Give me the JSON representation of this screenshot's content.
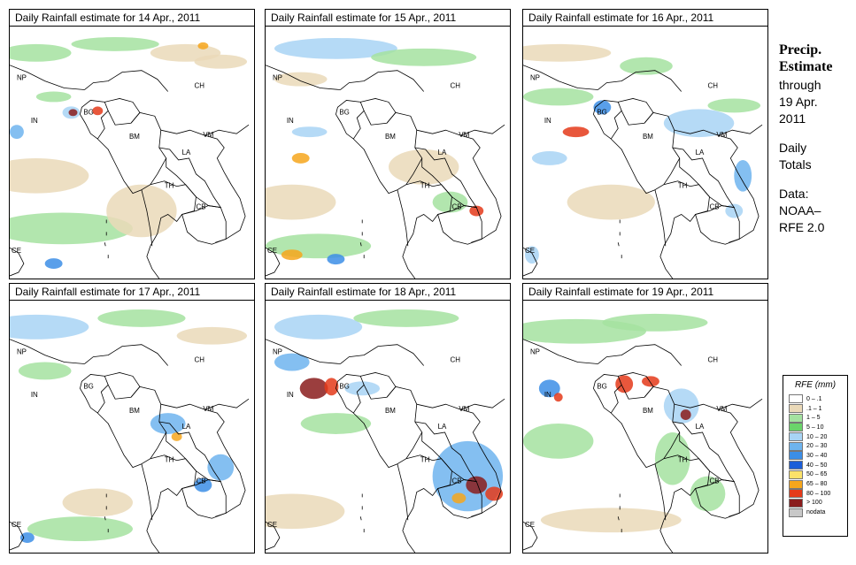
{
  "panels": [
    {
      "title": "Daily Rainfall estimate for  14 Apr., 2011"
    },
    {
      "title": "Daily Rainfall estimate for  15 Apr., 2011"
    },
    {
      "title": "Daily Rainfall estimate for  16 Apr., 2011"
    },
    {
      "title": "Daily Rainfall estimate for  17 Apr., 2011"
    },
    {
      "title": "Daily Rainfall estimate for  18 Apr., 2011"
    },
    {
      "title": "Daily Rainfall estimate for  19 Apr., 2011"
    }
  ],
  "country_labels": {
    "np": "NP",
    "ch": "CH",
    "in": "IN",
    "bg": "BG",
    "bm": "BM",
    "vm": "VM",
    "la": "LA",
    "th": "TH",
    "cb": "CB",
    "ce": "CE"
  },
  "side": {
    "heading1": "Precip.",
    "heading2": "Estimate",
    "line1": "through",
    "line2": "19 Apr.",
    "line3": "2011",
    "line4": "Daily",
    "line5": "Totals",
    "line6": "Data:",
    "line7": "NOAA–",
    "line8": "RFE 2.0"
  },
  "legend": {
    "title": "RFE (mm)",
    "items": [
      {
        "label": "0 – .1",
        "color": "#ffffff"
      },
      {
        "label": ".1 – 1",
        "color": "#ead9b8"
      },
      {
        "label": "1 – 5",
        "color": "#a4e2a0"
      },
      {
        "label": "5 – 10",
        "color": "#6ad46a"
      },
      {
        "label": "10 – 20",
        "color": "#a8d4f4"
      },
      {
        "label": "20 – 30",
        "color": "#6eb4ee"
      },
      {
        "label": "30 – 40",
        "color": "#3c8ee6"
      },
      {
        "label": "40 – 50",
        "color": "#1c5ed8"
      },
      {
        "label": "50 – 65",
        "color": "#fce26a"
      },
      {
        "label": "65 – 80",
        "color": "#f6a61c"
      },
      {
        "label": "80 – 100",
        "color": "#e43a1a"
      },
      {
        "label": "> 100",
        "color": "#8a1c1c"
      },
      {
        "label": "nodata",
        "color": "#c8c8c8"
      }
    ]
  }
}
